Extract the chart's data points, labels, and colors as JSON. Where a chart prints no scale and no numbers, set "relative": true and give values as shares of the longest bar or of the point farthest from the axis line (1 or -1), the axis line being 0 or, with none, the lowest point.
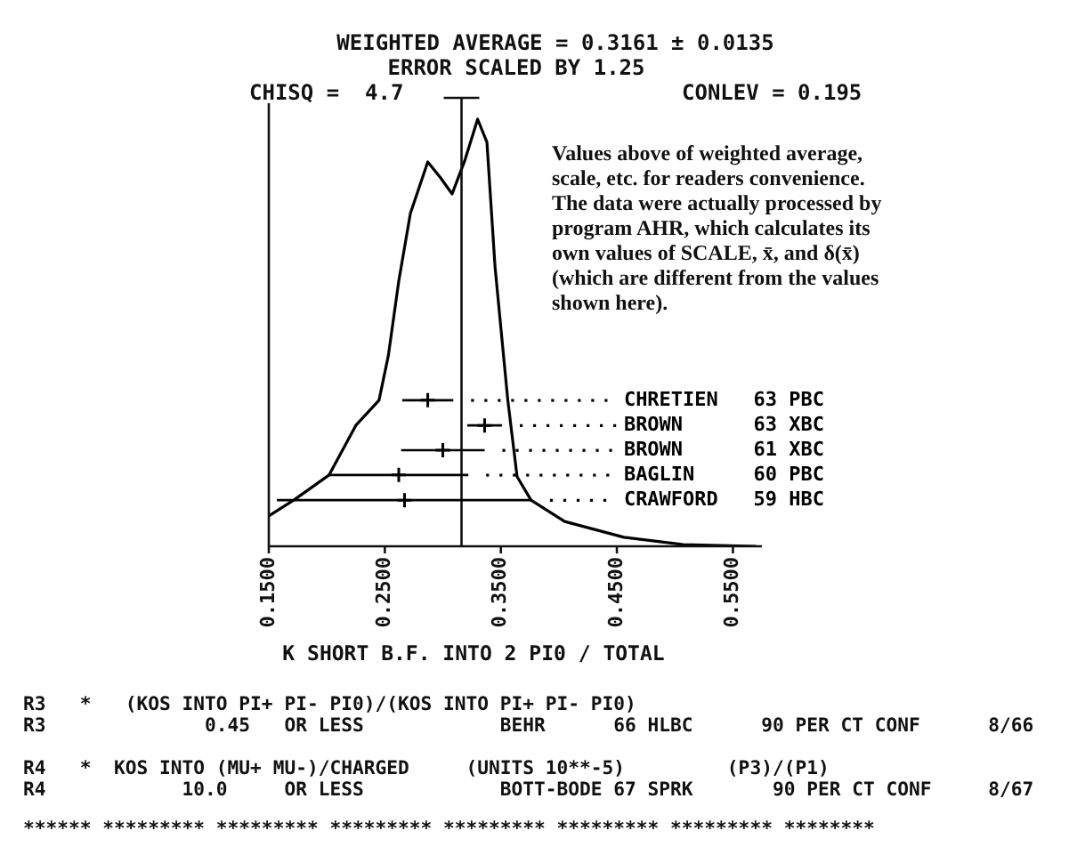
{
  "chart_data": {
    "type": "line",
    "title": "WEIGHTED AVERAGE = 0.3161 ± 0.0135",
    "subtitle": "ERROR SCALED BY 1.25",
    "xlabel": "K SHORT B.F. INTO 2 PI0 / TOTAL",
    "relative": true,
    "legend": "right",
    "xlim": [
      0.15,
      0.575
    ],
    "xticks": [
      {
        "value": 0.15,
        "label": "0.1500"
      },
      {
        "value": 0.25,
        "label": "0.2500"
      },
      {
        "value": 0.35,
        "label": "0.3500"
      },
      {
        "value": 0.45,
        "label": "0.4500"
      },
      {
        "value": 0.55,
        "label": "0.5500"
      }
    ],
    "ref_lines": [
      {
        "axis": "x",
        "value": 0.3161
      }
    ],
    "series": [
      {
        "type": "line",
        "color": "#000000",
        "marker": "none",
        "x": [
          0.15,
          0.1715,
          0.202,
          0.225,
          0.245,
          0.253,
          0.262,
          0.272,
          0.287,
          0.298,
          0.308,
          0.319,
          0.33,
          0.338,
          0.345,
          0.356,
          0.364,
          0.376,
          0.405,
          0.456,
          0.507,
          0.57
        ],
        "values": [
          0.071,
          0.108,
          0.167,
          0.283,
          0.342,
          0.446,
          0.621,
          0.779,
          0.9,
          0.863,
          0.825,
          0.904,
          1,
          0.946,
          0.654,
          0.342,
          0.163,
          0.108,
          0.058,
          0.021,
          0.004,
          0
        ]
      },
      {
        "type": "scatter",
        "name": "CHRETIEN   63 PBC",
        "color": "#000000",
        "marker": "cross",
        "x": [
          0.287
        ],
        "values": [
          0.342
        ],
        "xerrors": [
          0.022
        ]
      },
      {
        "type": "scatter",
        "name": "BROWN      63 XBC",
        "color": "#000000",
        "marker": "cross",
        "x": [
          0.336
        ],
        "values": [
          0.283
        ],
        "xerrors": [
          0.015
        ]
      },
      {
        "type": "scatter",
        "name": "BROWN      61 XBC",
        "color": "#000000",
        "marker": "cross",
        "x": [
          0.3
        ],
        "values": [
          0.225
        ],
        "xerrors": [
          0.036
        ]
      },
      {
        "type": "scatter",
        "name": "BAGLIN     60 PBC",
        "color": "#000000",
        "marker": "cross",
        "x": [
          0.262
        ],
        "values": [
          0.167
        ],
        "xerrors": [
          0.06
        ]
      },
      {
        "type": "scatter",
        "name": "CRAWFORD   59 HBC",
        "color": "#000000",
        "marker": "cross",
        "x": [
          0.267
        ],
        "values": [
          0.108
        ],
        "xerrors": [
          0.11
        ]
      }
    ],
    "annotations": [
      "CHISQ =  4.7",
      "CONLEV = 0.195",
      "Values above of weighted average, scale, etc. for readers convenience.  The data were actually processed by program AHR, which calculates its own values of SCALE, x̄, and δ(x̄) (which are different from the values shown here).",
      "R3   *   (KOS INTO PI+ PI- PI0)/(KOS INTO PI+ PI- PI0)",
      "R3              0.45   OR LESS            BEHR      66 HLBC      90 PER CT CONF      8/66",
      "R4   *  KOS INTO (MU+ MU-)/CHARGED     (UNITS 10**-5)         (P3)/(P1)",
      "R4            10.0     OR LESS            BOTT-BODE 67 SPRK       90 PER CT CONF     8/67",
      "****** ********* ********* ********* ********* ********* ********* ********"
    ]
  }
}
